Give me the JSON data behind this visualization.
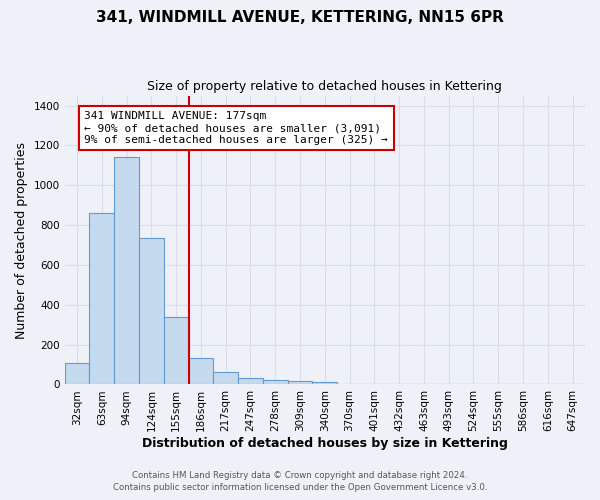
{
  "title": "341, WINDMILL AVENUE, KETTERING, NN15 6PR",
  "subtitle": "Size of property relative to detached houses in Kettering",
  "xlabel": "Distribution of detached houses by size in Kettering",
  "ylabel": "Number of detached properties",
  "bar_labels": [
    "32sqm",
    "63sqm",
    "94sqm",
    "124sqm",
    "155sqm",
    "186sqm",
    "217sqm",
    "247sqm",
    "278sqm",
    "309sqm",
    "340sqm",
    "370sqm",
    "401sqm",
    "432sqm",
    "463sqm",
    "493sqm",
    "524sqm",
    "555sqm",
    "586sqm",
    "616sqm",
    "647sqm"
  ],
  "bar_values": [
    107,
    860,
    1140,
    735,
    340,
    135,
    63,
    33,
    22,
    18,
    12,
    0,
    0,
    0,
    0,
    0,
    0,
    0,
    0,
    0,
    0
  ],
  "bar_color": "#c5d9ef",
  "bar_edge_color": "#6699cc",
  "bg_color": "#eef2f8",
  "grid_color": "#d8dde8",
  "marker_label": "341 WINDMILL AVENUE: 177sqm",
  "annotation_line1": "← 90% of detached houses are smaller (3,091)",
  "annotation_line2": "9% of semi-detached houses are larger (325) →",
  "annotation_box_color": "#ffffff",
  "annotation_box_edge": "#cc0000",
  "vline_color": "#cc0000",
  "vline_x_index": 4.5,
  "ylim": [
    0,
    1450
  ],
  "yticks": [
    0,
    200,
    400,
    600,
    800,
    1000,
    1200,
    1400
  ],
  "footer1": "Contains HM Land Registry data © Crown copyright and database right 2024.",
  "footer2": "Contains public sector information licensed under the Open Government Licence v3.0.",
  "title_fontsize": 11,
  "subtitle_fontsize": 9,
  "ylabel_fontsize": 9,
  "xlabel_fontsize": 9,
  "tick_fontsize": 7.5,
  "annot_fontsize": 8
}
